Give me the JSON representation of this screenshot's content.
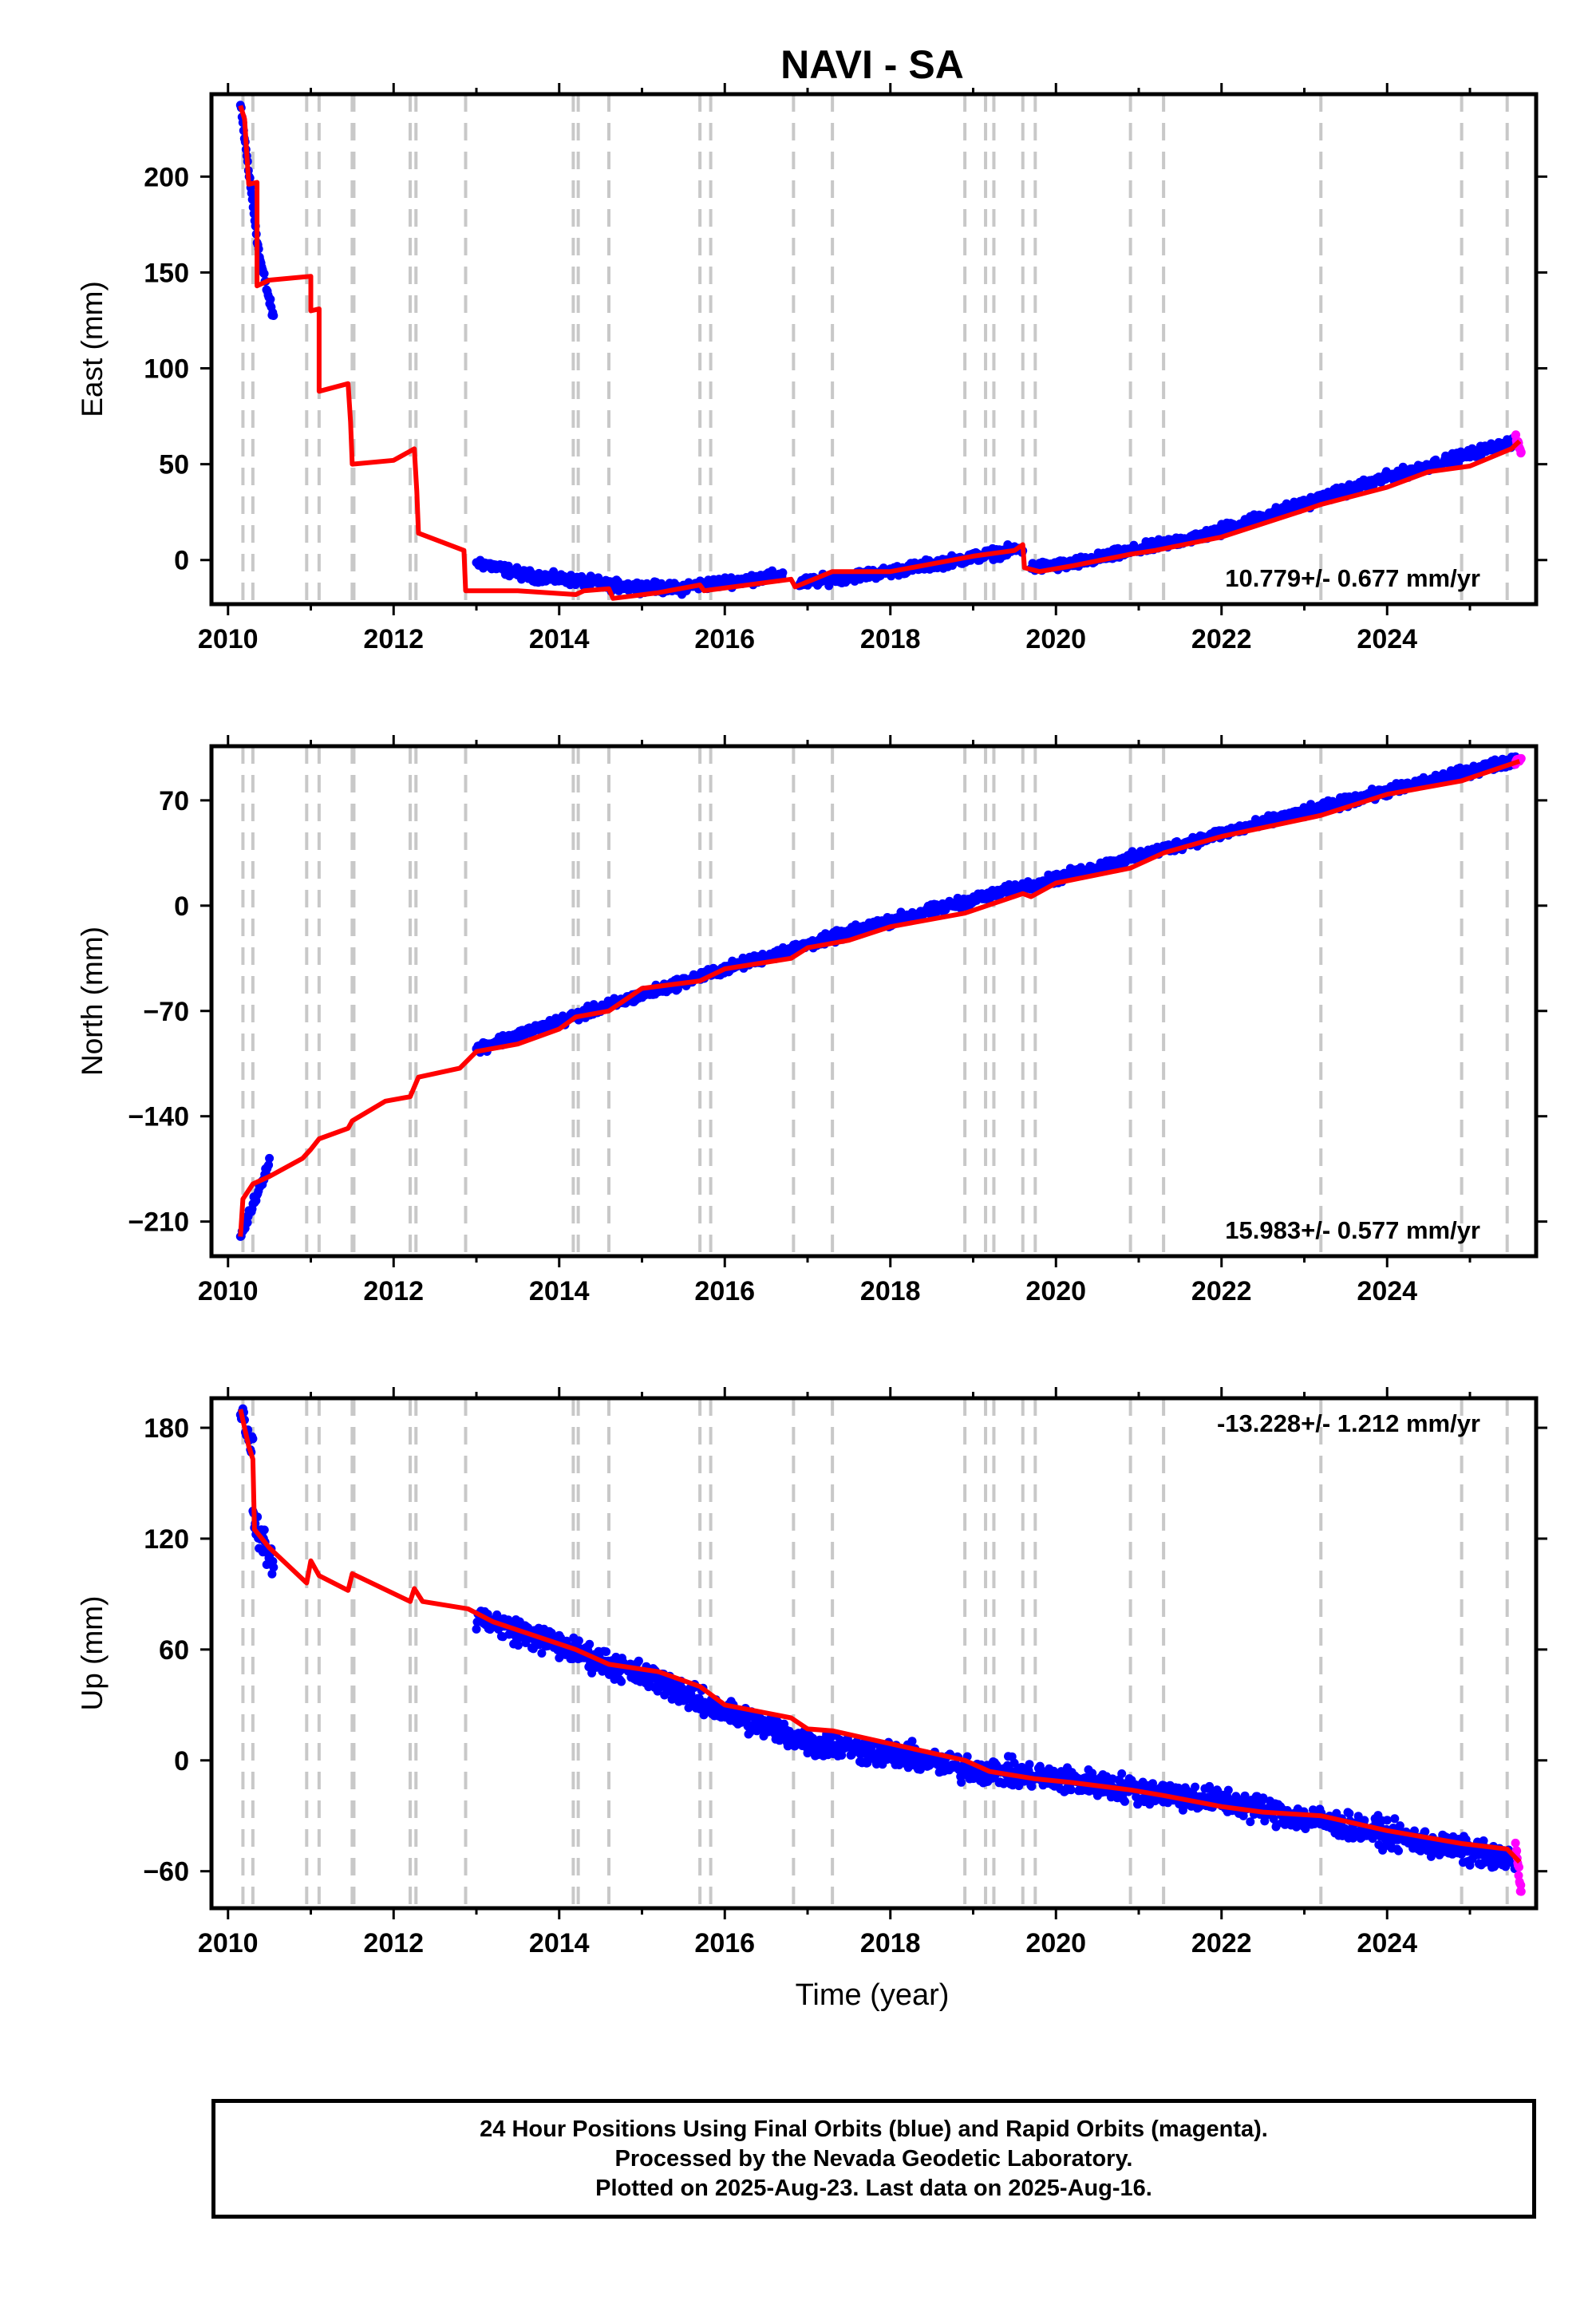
{
  "title": "NAVI - SA",
  "xlabel": "Time (year)",
  "colors": {
    "final": "#0000ff",
    "rapid": "#ff00ff",
    "model": "#ff0000",
    "break": "#c8c8c8",
    "frame": "#000000"
  },
  "footer": {
    "line1": "24 Hour Positions Using Final Orbits (blue) and Rapid Orbits (magenta).",
    "line2": "Processed by the Nevada Geodetic Laboratory.",
    "line3": "Plotted on 2025-Aug-23. Last data on 2025-Aug-16."
  },
  "chart_data": [
    {
      "type": "scatter",
      "component": "east",
      "ylabel": "East (mm)",
      "rate": "10.779+/- 0.677 mm/yr",
      "xlim": [
        2009.8,
        2025.8
      ],
      "ylim": [
        -23,
        243
      ],
      "xticks": [
        2010,
        2012,
        2014,
        2016,
        2018,
        2020,
        2022,
        2024
      ],
      "yticks": [
        0,
        50,
        100,
        150,
        200
      ],
      "segments_final": [
        [
          2010.15,
          2010.38,
          237,
          158
        ],
        [
          2010.38,
          2010.55,
          158,
          126
        ],
        [
          2013.0,
          2013.6,
          -1,
          -8
        ],
        [
          2013.6,
          2014.5,
          -8,
          -12
        ],
        [
          2014.5,
          2015.5,
          -13,
          -15
        ],
        [
          2015.5,
          2016.7,
          -14,
          -8
        ],
        [
          2016.9,
          2018.0,
          -12,
          -6
        ],
        [
          2018.0,
          2019.6,
          -6,
          6
        ],
        [
          2019.7,
          2020.2,
          -4,
          -2
        ],
        [
          2020.2,
          2022.0,
          -2,
          15
        ],
        [
          2022.0,
          2024.0,
          16,
          43
        ],
        [
          2024.0,
          2025.55,
          43,
          62
        ]
      ],
      "segments_rapid": [
        [
          2025.55,
          2025.62,
          64,
          56
        ]
      ],
      "model_line": [
        [
          2010.15,
          237
        ],
        [
          2010.2,
          230
        ],
        [
          2010.25,
          196
        ],
        [
          2010.35,
          197
        ],
        [
          2010.35,
          143
        ],
        [
          2010.5,
          146
        ],
        [
          2011.0,
          148
        ],
        [
          2011.0,
          130
        ],
        [
          2011.1,
          131
        ],
        [
          2011.1,
          88
        ],
        [
          2011.45,
          92
        ],
        [
          2011.48,
          72
        ],
        [
          2011.5,
          50
        ],
        [
          2012.0,
          52
        ],
        [
          2012.25,
          58
        ],
        [
          2012.28,
          36
        ],
        [
          2012.3,
          14
        ],
        [
          2012.85,
          5
        ],
        [
          2012.87,
          -16
        ],
        [
          2013.5,
          -16
        ],
        [
          2014.2,
          -18
        ],
        [
          2014.3,
          -16
        ],
        [
          2014.6,
          -15
        ],
        [
          2014.65,
          -20
        ],
        [
          2015.2,
          -17
        ],
        [
          2015.7,
          -13
        ],
        [
          2015.75,
          -16
        ],
        [
          2016.8,
          -10
        ],
        [
          2016.85,
          -14
        ],
        [
          2017.3,
          -6
        ],
        [
          2018.0,
          -6
        ],
        [
          2019.0,
          2
        ],
        [
          2019.5,
          5
        ],
        [
          2019.6,
          8
        ],
        [
          2019.62,
          -4
        ],
        [
          2019.8,
          -6
        ],
        [
          2020.2,
          -3
        ],
        [
          2020.9,
          3
        ],
        [
          2021.2,
          5
        ],
        [
          2022.0,
          12
        ],
        [
          2023.0,
          26
        ],
        [
          2023.2,
          29
        ],
        [
          2024.0,
          38
        ],
        [
          2024.5,
          46
        ],
        [
          2025.0,
          49
        ],
        [
          2025.5,
          58
        ],
        [
          2025.6,
          62
        ]
      ],
      "breaks": [
        2010.18,
        2010.3,
        2010.95,
        2011.1,
        2011.5,
        2011.52,
        2012.2,
        2012.27,
        2012.87,
        2014.17,
        2014.23,
        2014.6,
        2015.7,
        2015.83,
        2016.83,
        2017.3,
        2018.9,
        2019.15,
        2019.25,
        2019.6,
        2019.75,
        2020.9,
        2021.3,
        2023.2,
        2024.9,
        2025.45
      ]
    },
    {
      "type": "scatter",
      "component": "north",
      "ylabel": "North (mm)",
      "rate": "15.983+/- 0.577 mm/yr",
      "xlim": [
        2009.8,
        2025.8
      ],
      "ylim": [
        -233,
        106
      ],
      "xticks": [
        2010,
        2012,
        2014,
        2016,
        2018,
        2020,
        2022,
        2024
      ],
      "yticks": [
        -210,
        -140,
        -70,
        0,
        70
      ],
      "segments_final": [
        [
          2010.15,
          2010.5,
          -220,
          -170
        ],
        [
          2013.0,
          2014.5,
          -95,
          -68
        ],
        [
          2014.5,
          2016.0,
          -68,
          -42
        ],
        [
          2016.0,
          2018.0,
          -42,
          -10
        ],
        [
          2018.0,
          2020.0,
          -10,
          18
        ],
        [
          2020.0,
          2022.0,
          18,
          48
        ],
        [
          2022.0,
          2024.0,
          48,
          76
        ],
        [
          2024.0,
          2025.55,
          76,
          97
        ]
      ],
      "segments_rapid": [
        [
          2025.55,
          2025.62,
          96,
          98
        ]
      ],
      "model_line": [
        [
          2010.15,
          -220
        ],
        [
          2010.18,
          -195
        ],
        [
          2010.3,
          -185
        ],
        [
          2010.5,
          -180
        ],
        [
          2010.9,
          -168
        ],
        [
          2011.0,
          -162
        ],
        [
          2011.1,
          -155
        ],
        [
          2011.45,
          -148
        ],
        [
          2011.5,
          -143
        ],
        [
          2011.9,
          -130
        ],
        [
          2012.2,
          -127
        ],
        [
          2012.3,
          -114
        ],
        [
          2012.8,
          -108
        ],
        [
          2013.0,
          -97
        ],
        [
          2013.5,
          -92
        ],
        [
          2014.0,
          -82
        ],
        [
          2014.2,
          -74
        ],
        [
          2014.6,
          -70
        ],
        [
          2015.0,
          -55
        ],
        [
          2015.7,
          -50
        ],
        [
          2016.0,
          -42
        ],
        [
          2016.8,
          -35
        ],
        [
          2017.0,
          -28
        ],
        [
          2017.5,
          -23
        ],
        [
          2018.0,
          -14
        ],
        [
          2018.9,
          -5
        ],
        [
          2019.6,
          8
        ],
        [
          2019.7,
          6
        ],
        [
          2020.0,
          15
        ],
        [
          2020.9,
          25
        ],
        [
          2021.3,
          35
        ],
        [
          2022.0,
          46
        ],
        [
          2023.2,
          60
        ],
        [
          2024.0,
          74
        ],
        [
          2024.9,
          83
        ],
        [
          2025.6,
          96
        ]
      ],
      "breaks": [
        2010.18,
        2010.3,
        2010.95,
        2011.1,
        2011.5,
        2011.52,
        2012.2,
        2012.27,
        2012.87,
        2014.17,
        2014.23,
        2014.6,
        2015.7,
        2015.83,
        2016.83,
        2017.3,
        2018.9,
        2019.15,
        2019.25,
        2019.6,
        2019.75,
        2020.9,
        2021.3,
        2023.2,
        2024.9,
        2025.45
      ]
    },
    {
      "type": "scatter",
      "component": "up",
      "ylabel": "Up (mm)",
      "rate": "-13.228+/- 1.212 mm/yr",
      "xlim": [
        2009.8,
        2025.8
      ],
      "ylim": [
        -80,
        196
      ],
      "xticks": [
        2010,
        2012,
        2014,
        2016,
        2018,
        2020,
        2022,
        2024
      ],
      "yticks": [
        -60,
        0,
        60,
        120,
        180
      ],
      "segments_final": [
        [
          2010.15,
          2010.3,
          190,
          170
        ],
        [
          2010.3,
          2010.55,
          130,
          105
        ],
        [
          2013.0,
          2014.0,
          78,
          62
        ],
        [
          2014.0,
          2015.5,
          62,
          38
        ],
        [
          2015.5,
          2017.0,
          35,
          10
        ],
        [
          2017.0,
          2018.5,
          10,
          0
        ],
        [
          2018.5,
          2020.0,
          -2,
          -10
        ],
        [
          2020.0,
          2022.0,
          -10,
          -22
        ],
        [
          2022.0,
          2024.0,
          -22,
          -40
        ],
        [
          2024.0,
          2025.55,
          -40,
          -55
        ]
      ],
      "segments_rapid": [
        [
          2025.55,
          2025.62,
          -45,
          -72
        ]
      ],
      "model_line": [
        [
          2010.15,
          190
        ],
        [
          2010.25,
          170
        ],
        [
          2010.3,
          163
        ],
        [
          2010.32,
          125
        ],
        [
          2010.5,
          115
        ],
        [
          2010.95,
          96
        ],
        [
          2011.0,
          108
        ],
        [
          2011.1,
          100
        ],
        [
          2011.45,
          92
        ],
        [
          2011.5,
          101
        ],
        [
          2012.2,
          86
        ],
        [
          2012.25,
          93
        ],
        [
          2012.35,
          86
        ],
        [
          2012.9,
          82
        ],
        [
          2013.2,
          75
        ],
        [
          2014.2,
          60
        ],
        [
          2014.6,
          52
        ],
        [
          2015.2,
          48
        ],
        [
          2015.7,
          40
        ],
        [
          2016.0,
          30
        ],
        [
          2016.8,
          23
        ],
        [
          2017.0,
          17
        ],
        [
          2017.3,
          16
        ],
        [
          2018.0,
          9
        ],
        [
          2018.9,
          0
        ],
        [
          2019.2,
          -6
        ],
        [
          2019.75,
          -10
        ],
        [
          2020.2,
          -12
        ],
        [
          2020.9,
          -16
        ],
        [
          2021.3,
          -19
        ],
        [
          2022.0,
          -25
        ],
        [
          2022.5,
          -28
        ],
        [
          2023.2,
          -30
        ],
        [
          2024.0,
          -38
        ],
        [
          2024.9,
          -45
        ],
        [
          2025.45,
          -48
        ],
        [
          2025.6,
          -55
        ]
      ],
      "breaks": [
        2010.18,
        2010.3,
        2010.95,
        2011.1,
        2011.5,
        2011.52,
        2012.2,
        2012.27,
        2012.87,
        2014.17,
        2014.23,
        2014.6,
        2015.7,
        2015.83,
        2016.83,
        2017.3,
        2018.9,
        2019.15,
        2019.25,
        2019.6,
        2019.75,
        2020.9,
        2021.3,
        2023.2,
        2024.9,
        2025.45
      ]
    }
  ]
}
